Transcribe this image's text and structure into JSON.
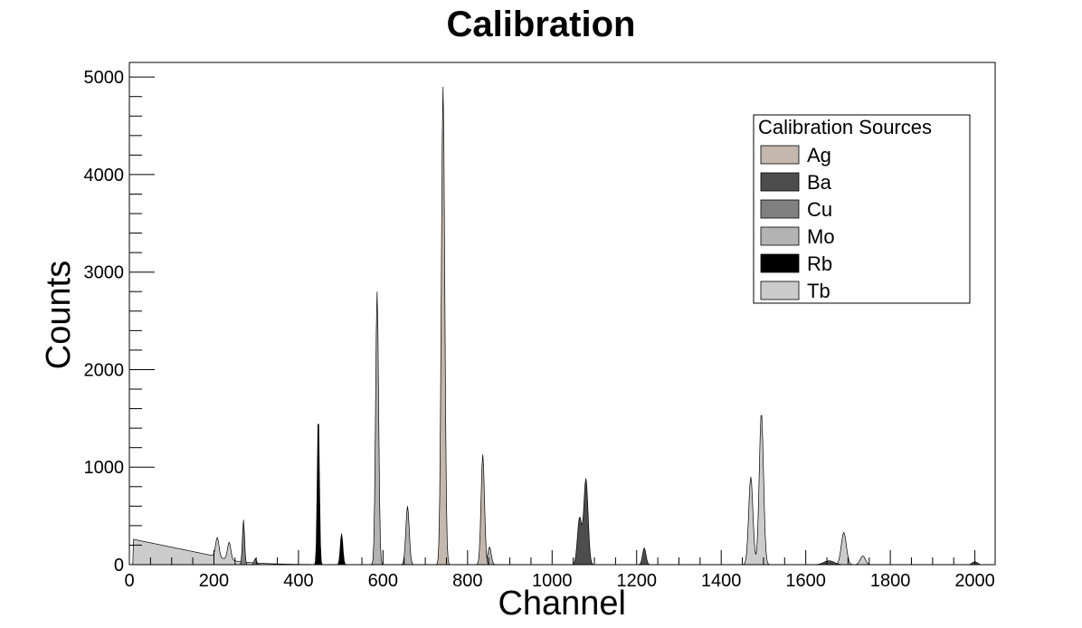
{
  "chart_data": {
    "type": "area",
    "title": "Calibration",
    "xlabel": "Channel",
    "ylabel": "Counts",
    "xlim": [
      0,
      2048
    ],
    "ylim": [
      0,
      5150
    ],
    "x_ticks": [
      0,
      200,
      400,
      600,
      800,
      1000,
      1200,
      1400,
      1600,
      1800,
      2000
    ],
    "y_ticks": [
      0,
      1000,
      2000,
      3000,
      4000,
      5000
    ],
    "grid": false,
    "legend_title": "Calibration Sources",
    "legend_position": "top-right",
    "series": [
      {
        "name": "Tb",
        "color": "#cccccc",
        "background": {
          "from": 10,
          "to": 200,
          "start": 260,
          "end": 90
        },
        "peaks": [
          {
            "center": 208,
            "height": 200,
            "sigma": 4
          },
          {
            "center": 236,
            "height": 180,
            "sigma": 4
          },
          {
            "center": 1470,
            "height": 900,
            "sigma": 5
          },
          {
            "center": 1495,
            "height": 1560,
            "sigma": 5
          },
          {
            "center": 1690,
            "height": 330,
            "sigma": 6
          },
          {
            "center": 1735,
            "height": 90,
            "sigma": 6
          }
        ]
      },
      {
        "name": "Cu",
        "color": "#808080",
        "peaks": [
          {
            "center": 270,
            "height": 460,
            "sigma": 2.5
          },
          {
            "center": 298,
            "height": 60,
            "sigma": 3
          }
        ]
      },
      {
        "name": "Rb",
        "color": "#000000",
        "peaks": [
          {
            "center": 447,
            "height": 1560,
            "sigma": 2.5
          },
          {
            "center": 502,
            "height": 320,
            "sigma": 3
          },
          {
            "center": 850,
            "height": 90,
            "sigma": 5
          }
        ]
      },
      {
        "name": "Mo",
        "color": "#b3b3b3",
        "peaks": [
          {
            "center": 586,
            "height": 2800,
            "sigma": 3.5
          },
          {
            "center": 658,
            "height": 600,
            "sigma": 4
          },
          {
            "center": 852,
            "height": 180,
            "sigma": 4
          }
        ]
      },
      {
        "name": "Ag",
        "color": "#c4b8ae",
        "peaks": [
          {
            "center": 742,
            "height": 4900,
            "sigma": 4
          },
          {
            "center": 836,
            "height": 1130,
            "sigma": 4
          }
        ]
      },
      {
        "name": "Ba",
        "color": "#4d4d4d",
        "peaks": [
          {
            "center": 1065,
            "height": 480,
            "sigma": 5
          },
          {
            "center": 1080,
            "height": 880,
            "sigma": 5
          },
          {
            "center": 1218,
            "height": 170,
            "sigma": 4
          },
          {
            "center": 1655,
            "height": 40,
            "sigma": 12
          },
          {
            "center": 2000,
            "height": 30,
            "sigma": 6
          }
        ]
      }
    ]
  }
}
